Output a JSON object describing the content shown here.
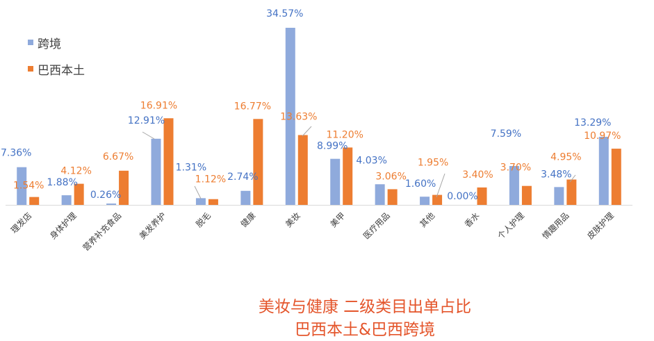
{
  "chart_data": {
    "type": "bar",
    "title": "美妆与健康 二级类目出单占比",
    "subtitle": "巴西本土&巴西跨境",
    "categories": [
      "理发店",
      "身体护理",
      "营养补充食品",
      "美发养护",
      "脱毛",
      "健康",
      "美妆",
      "美甲",
      "医疗用品",
      "其他",
      "香水",
      "个人护理",
      "情趣用品",
      "皮肤护理"
    ],
    "series": [
      {
        "name": "跨境",
        "color": "#8FAADC",
        "label_color": "#4472C4",
        "values": [
          7.36,
          1.88,
          0.26,
          12.91,
          1.31,
          2.74,
          34.57,
          8.99,
          4.03,
          1.6,
          0.0,
          7.59,
          3.48,
          13.29
        ],
        "labels": [
          "7.36%",
          "1.88%",
          "0.26%",
          "12.91%",
          "1.31%",
          "2.74%",
          "34.57%",
          "8.99%",
          "4.03%",
          "1.60%",
          "0.00%",
          "7.59%",
          "3.48%",
          "13.29%"
        ]
      },
      {
        "name": "巴西本土",
        "color": "#ED7D31",
        "label_color": "#ED7D31",
        "values": [
          1.54,
          4.12,
          6.67,
          16.91,
          1.12,
          16.77,
          13.63,
          11.2,
          3.06,
          1.95,
          3.4,
          3.7,
          4.95,
          10.97
        ],
        "labels": [
          "1.54%",
          "4.12%",
          "6.67%",
          "16.91%",
          "1.12%",
          "16.77%",
          "13.63%",
          "11.20%",
          "3.06%",
          "1.95%",
          "3.40%",
          "3.70%",
          "4.95%",
          "10.97%"
        ]
      }
    ],
    "ylim": [
      0,
      34.57
    ],
    "grid": false,
    "legend_position": "top-left"
  }
}
